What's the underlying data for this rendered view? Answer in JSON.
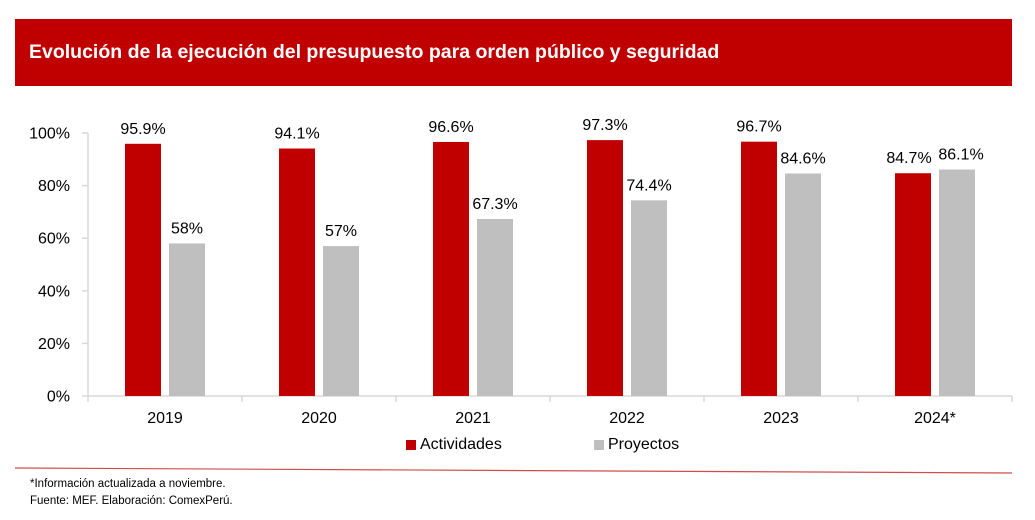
{
  "header": {
    "title": "Evolución de la ejecución del presupuesto para orden público y seguridad"
  },
  "colors": {
    "brand": "#C00000",
    "actividades": "#C00000",
    "proyectos": "#BFBFBF",
    "axis": "#D9D9D9"
  },
  "chart_data": {
    "type": "bar",
    "title": "Evolución de la ejecución del presupuesto para orden público y seguridad",
    "xlabel": "",
    "ylabel": "",
    "categories": [
      "2019",
      "2020",
      "2021",
      "2022",
      "2023",
      "2024*"
    ],
    "series": [
      {
        "name": "Actividades",
        "values": [
          95.9,
          94.1,
          96.6,
          97.3,
          96.7,
          84.7
        ],
        "labels": [
          "95.9%",
          "94.1%",
          "96.6%",
          "97.3%",
          "96.7%",
          "84.7%"
        ]
      },
      {
        "name": "Proyectos",
        "values": [
          58,
          57,
          67.3,
          74.4,
          84.6,
          86.1
        ],
        "labels": [
          "58%",
          "57%",
          "67.3%",
          "74.4%",
          "84.6%",
          "86.1%"
        ]
      }
    ],
    "ylim": [
      0,
      100
    ],
    "yticks": [
      0,
      20,
      40,
      60,
      80,
      100
    ],
    "ytick_labels": [
      "0%",
      "20%",
      "40%",
      "60%",
      "80%",
      "100%"
    ],
    "grid": false,
    "legend_position": "bottom"
  },
  "legend": {
    "items": [
      "Actividades",
      "Proyectos"
    ]
  },
  "footnotes": {
    "note": "*Información actualizada a noviembre.",
    "source": "Fuente: MEF. Elaboración: ComexPerú."
  }
}
